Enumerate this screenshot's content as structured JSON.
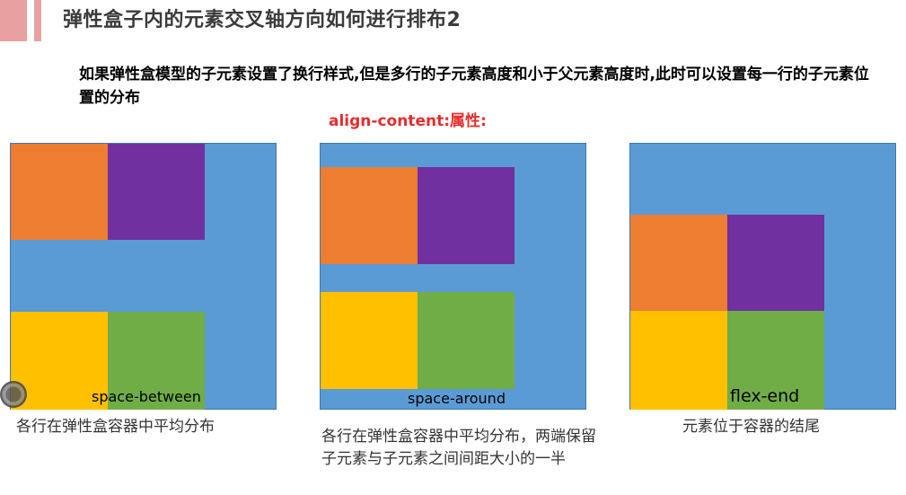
{
  "slide": {
    "title": "弹性盒子内的元素交叉轴方向如何进行排布2",
    "subtitle": "如果弹性盒模型的子元素设置了换行样式,但是多行的子元素高度和小于父元素高度时,此时可以设置每一行的子元素位置的分布",
    "property_label": "align-content:属性:"
  },
  "colors": {
    "container": "#5b9bd5",
    "orange": "#ed7d31",
    "purple": "#7030a0",
    "yellow": "#ffc000",
    "green": "#70ad47",
    "accent": "#e8a0a0",
    "property_text": "#e52d2d"
  },
  "demos": [
    {
      "value_label": "space-between",
      "caption": "各行在弹性盒容器中平均分布"
    },
    {
      "value_label": "space-around",
      "caption": "各行在弹性盒容器中平均分布，两端保留子元素与子元素之间间距大小的一半"
    },
    {
      "value_label": "flex-end",
      "caption": "元素位于容器的结尾"
    }
  ]
}
